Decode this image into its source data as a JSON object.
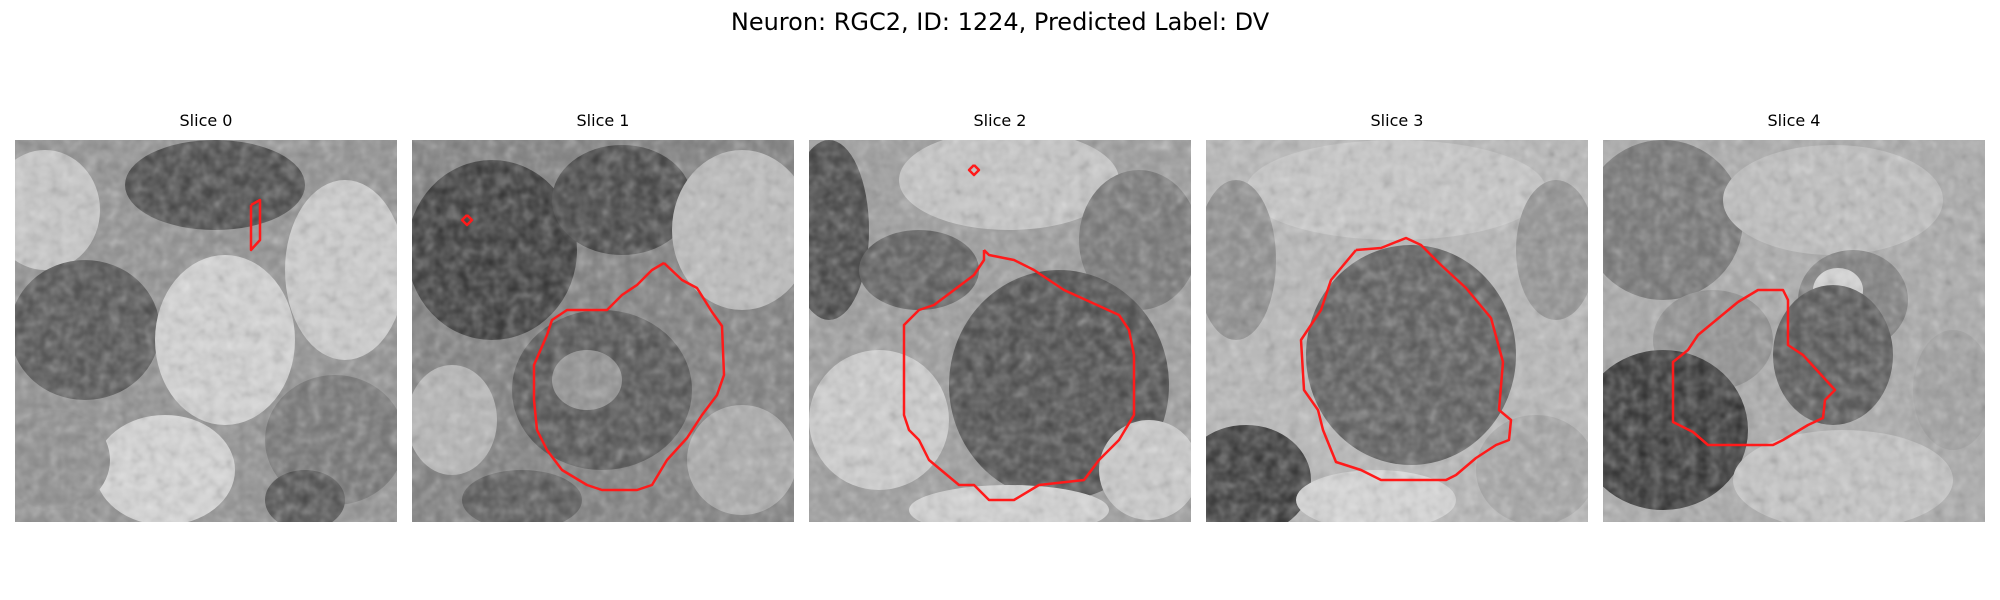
{
  "figure": {
    "title": "Neuron: RGC2, ID: 1224, Predicted Label: DV"
  },
  "colors": {
    "contour": "#ff1a1a",
    "background": "#ffffff"
  },
  "panels": [
    {
      "title": "Slice 0"
    },
    {
      "title": "Slice 1"
    },
    {
      "title": "Slice 2"
    },
    {
      "title": "Slice 3"
    },
    {
      "title": "Slice 4"
    }
  ]
}
